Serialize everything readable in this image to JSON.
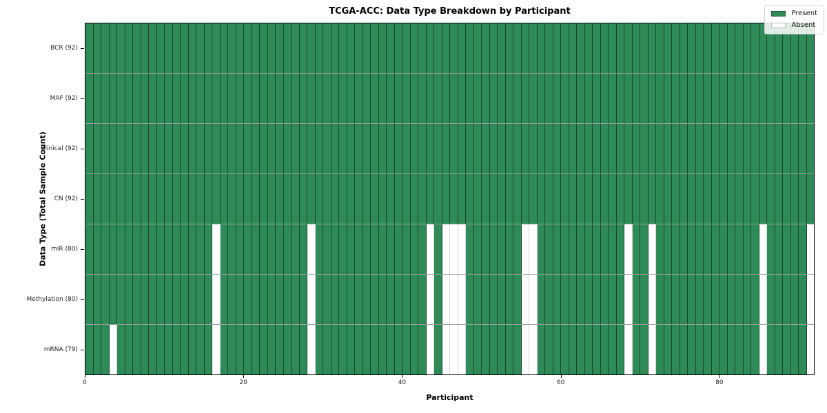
{
  "chart": {
    "title": "TCGA-ACC: Data Type Breakdown by Participant",
    "xlabel": "Participant",
    "ylabel": "Data Type (Total Sample Count)"
  },
  "legend": {
    "present_label": "Present",
    "absent_label": "Absent"
  },
  "chart_data": {
    "type": "heatmap",
    "title": "TCGA-ACC: Data Type Breakdown by Participant",
    "xlabel": "Participant",
    "ylabel": "Data Type (Total Sample Count)",
    "legend_entries": [
      "Present",
      "Absent"
    ],
    "legend_position": "upper right",
    "n_participants": 92,
    "xlim": [
      0,
      92
    ],
    "x_ticks": [
      0,
      20,
      40,
      60,
      80
    ],
    "colors": {
      "present": "#2e8b57",
      "absent": "#ffffff"
    },
    "rows": [
      {
        "name": "BCR",
        "label": "BCR (92)",
        "total": 92,
        "absent_participants": []
      },
      {
        "name": "MAF",
        "label": "MAF (92)",
        "total": 92,
        "absent_participants": []
      },
      {
        "name": "Clinical",
        "label": "Clinical (92)",
        "total": 92,
        "absent_participants": []
      },
      {
        "name": "CN",
        "label": "CN (92)",
        "total": 92,
        "absent_participants": []
      },
      {
        "name": "miR",
        "label": "miR (80)",
        "total": 80,
        "absent_participants": [
          16,
          28,
          43,
          45,
          46,
          47,
          55,
          56,
          68,
          71,
          85,
          91
        ]
      },
      {
        "name": "Methylation",
        "label": "Methylation (80)",
        "total": 80,
        "absent_participants": [
          16,
          28,
          43,
          45,
          46,
          47,
          55,
          56,
          68,
          71,
          85,
          91
        ]
      },
      {
        "name": "mRNA",
        "label": "mRNA (79)",
        "total": 79,
        "absent_participants": [
          3,
          16,
          28,
          43,
          45,
          46,
          47,
          55,
          56,
          68,
          71,
          85,
          91
        ]
      }
    ]
  }
}
